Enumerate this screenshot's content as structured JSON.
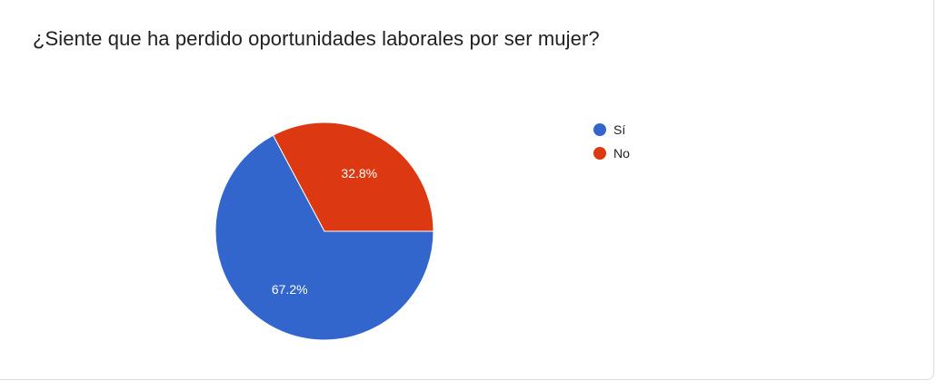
{
  "question": {
    "title": "¿Siente que ha perdido oportunidades laborales por ser mujer?"
  },
  "chart_data": {
    "type": "pie",
    "categories": [
      "Sí",
      "No"
    ],
    "values": [
      67.2,
      32.8
    ],
    "value_labels": [
      "67.2%",
      "32.8%"
    ],
    "colors": [
      "#3366cc",
      "#dc3912"
    ],
    "legend_position": "right",
    "title": "¿Siente que ha perdido oportunidades laborales por ser mujer?"
  }
}
